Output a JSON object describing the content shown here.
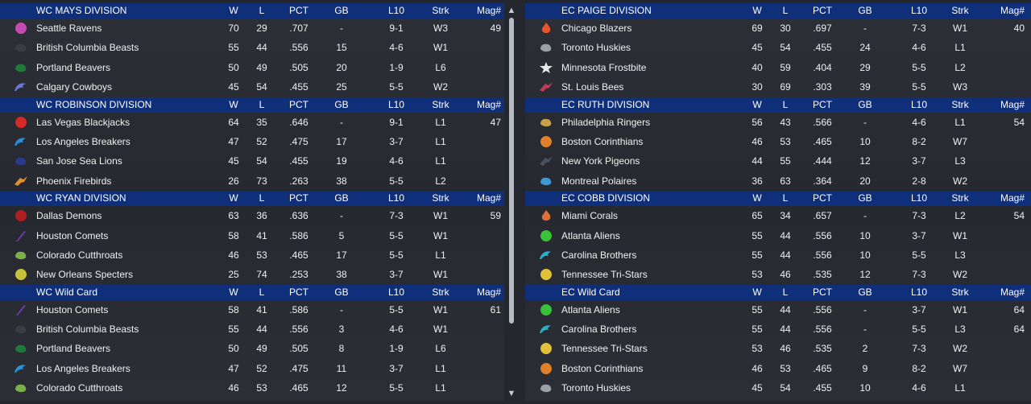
{
  "columns": {
    "w": "W",
    "l": "L",
    "pct": "PCT",
    "gb": "GB",
    "l10": "L10",
    "strk": "Strk",
    "mag": "Mag#"
  },
  "left": [
    {
      "title": "WC MAYS DIVISION",
      "teams": [
        {
          "name": "Seattle Ravens",
          "icon": "ravens-icon",
          "color": "#c64bb0",
          "w": "70",
          "l": "29",
          "pct": ".707",
          "gb": "-",
          "l10": "9-1",
          "strk": "W3",
          "mag": "49"
        },
        {
          "name": "British Columbia Beasts",
          "icon": "beasts-icon",
          "color": "#3a3d43",
          "w": "55",
          "l": "44",
          "pct": ".556",
          "gb": "15",
          "l10": "4-6",
          "strk": "W1",
          "mag": ""
        },
        {
          "name": "Portland Beavers",
          "icon": "beavers-icon",
          "color": "#1f7a3a",
          "w": "50",
          "l": "49",
          "pct": ".505",
          "gb": "20",
          "l10": "1-9",
          "strk": "L6",
          "mag": ""
        },
        {
          "name": "Calgary Cowboys",
          "icon": "cowboys-icon",
          "color": "#6f72d6",
          "w": "45",
          "l": "54",
          "pct": ".455",
          "gb": "25",
          "l10": "5-5",
          "strk": "W2",
          "mag": ""
        }
      ]
    },
    {
      "title": "WC ROBINSON DIVISION",
      "teams": [
        {
          "name": "Las Vegas Blackjacks",
          "icon": "blackjacks-icon",
          "color": "#d42a2a",
          "w": "64",
          "l": "35",
          "pct": ".646",
          "gb": "-",
          "l10": "9-1",
          "strk": "L1",
          "mag": "47"
        },
        {
          "name": "Los Angeles Breakers",
          "icon": "breakers-icon",
          "color": "#2a8fd6",
          "w": "47",
          "l": "52",
          "pct": ".475",
          "gb": "17",
          "l10": "3-7",
          "strk": "L1",
          "mag": ""
        },
        {
          "name": "San Jose Sea Lions",
          "icon": "sea-lions-icon",
          "color": "#2a3a8a",
          "w": "45",
          "l": "54",
          "pct": ".455",
          "gb": "19",
          "l10": "4-6",
          "strk": "L1",
          "mag": ""
        },
        {
          "name": "Phoenix Firebirds",
          "icon": "firebirds-icon",
          "color": "#e0902a",
          "w": "26",
          "l": "73",
          "pct": ".263",
          "gb": "38",
          "l10": "5-5",
          "strk": "L2",
          "mag": ""
        }
      ]
    },
    {
      "title": "WC RYAN DIVISION",
      "teams": [
        {
          "name": "Dallas Demons",
          "icon": "demons-icon",
          "color": "#b01f1f",
          "w": "63",
          "l": "36",
          "pct": ".636",
          "gb": "-",
          "l10": "7-3",
          "strk": "W1",
          "mag": "59"
        },
        {
          "name": "Houston Comets",
          "icon": "comets-icon",
          "color": "#6a3ab0",
          "w": "58",
          "l": "41",
          "pct": ".586",
          "gb": "5",
          "l10": "5-5",
          "strk": "W1",
          "mag": ""
        },
        {
          "name": "Colorado Cutthroats",
          "icon": "cutthroats-icon",
          "color": "#7ab04a",
          "w": "46",
          "l": "53",
          "pct": ".465",
          "gb": "17",
          "l10": "5-5",
          "strk": "L1",
          "mag": ""
        },
        {
          "name": "New Orleans Specters",
          "icon": "specters-icon",
          "color": "#c8c23a",
          "w": "25",
          "l": "74",
          "pct": ".253",
          "gb": "38",
          "l10": "3-7",
          "strk": "W1",
          "mag": ""
        }
      ]
    },
    {
      "title": "WC  Wild Card",
      "teams": [
        {
          "name": "Houston Comets",
          "icon": "comets-icon",
          "color": "#6a3ab0",
          "w": "58",
          "l": "41",
          "pct": ".586",
          "gb": "-",
          "l10": "5-5",
          "strk": "W1",
          "mag": "61"
        },
        {
          "name": "British Columbia Beasts",
          "icon": "beasts-icon",
          "color": "#3a3d43",
          "w": "55",
          "l": "44",
          "pct": ".556",
          "gb": "3",
          "l10": "4-6",
          "strk": "W1",
          "mag": ""
        },
        {
          "name": "Portland Beavers",
          "icon": "beavers-icon",
          "color": "#1f7a3a",
          "w": "50",
          "l": "49",
          "pct": ".505",
          "gb": "8",
          "l10": "1-9",
          "strk": "L6",
          "mag": ""
        },
        {
          "name": "Los Angeles Breakers",
          "icon": "breakers-icon",
          "color": "#2a8fd6",
          "w": "47",
          "l": "52",
          "pct": ".475",
          "gb": "11",
          "l10": "3-7",
          "strk": "L1",
          "mag": ""
        },
        {
          "name": "Colorado Cutthroats",
          "icon": "cutthroats-icon",
          "color": "#7ab04a",
          "w": "46",
          "l": "53",
          "pct": ".465",
          "gb": "12",
          "l10": "5-5",
          "strk": "L1",
          "mag": ""
        }
      ]
    }
  ],
  "right": [
    {
      "title": "EC PAIGE DIVISION",
      "teams": [
        {
          "name": "Chicago Blazers",
          "icon": "blazers-icon",
          "color": "#e8542a",
          "w": "69",
          "l": "30",
          "pct": ".697",
          "gb": "-",
          "l10": "7-3",
          "strk": "W1",
          "mag": "40"
        },
        {
          "name": "Toronto Huskies",
          "icon": "huskies-icon",
          "color": "#9aa0a8",
          "w": "45",
          "l": "54",
          "pct": ".455",
          "gb": "24",
          "l10": "4-6",
          "strk": "L1",
          "mag": ""
        },
        {
          "name": "Minnesota Frostbite",
          "icon": "frostbite-icon",
          "color": "#e8e8e8",
          "w": "40",
          "l": "59",
          "pct": ".404",
          "gb": "29",
          "l10": "5-5",
          "strk": "L2",
          "mag": ""
        },
        {
          "name": "St. Louis Bees",
          "icon": "bees-icon",
          "color": "#c23a5a",
          "w": "30",
          "l": "69",
          "pct": ".303",
          "gb": "39",
          "l10": "5-5",
          "strk": "W3",
          "mag": ""
        }
      ]
    },
    {
      "title": "EC RUTH DIVISION",
      "teams": [
        {
          "name": "Philadelphia Ringers",
          "icon": "ringers-icon",
          "color": "#c8a04a",
          "w": "56",
          "l": "43",
          "pct": ".566",
          "gb": "-",
          "l10": "4-6",
          "strk": "L1",
          "mag": "54"
        },
        {
          "name": "Boston Corinthians",
          "icon": "corinthians-icon",
          "color": "#e0802a",
          "w": "46",
          "l": "53",
          "pct": ".465",
          "gb": "10",
          "l10": "8-2",
          "strk": "W7",
          "mag": ""
        },
        {
          "name": "New York Pigeons",
          "icon": "pigeons-icon",
          "color": "#4a5260",
          "w": "44",
          "l": "55",
          "pct": ".444",
          "gb": "12",
          "l10": "3-7",
          "strk": "L3",
          "mag": ""
        },
        {
          "name": "Montreal Polaires",
          "icon": "polaires-icon",
          "color": "#3a9ad6",
          "w": "36",
          "l": "63",
          "pct": ".364",
          "gb": "20",
          "l10": "2-8",
          "strk": "W2",
          "mag": ""
        }
      ]
    },
    {
      "title": "EC COBB DIVISION",
      "teams": [
        {
          "name": "Miami Corals",
          "icon": "corals-icon",
          "color": "#e0703a",
          "w": "65",
          "l": "34",
          "pct": ".657",
          "gb": "-",
          "l10": "7-3",
          "strk": "L2",
          "mag": "54"
        },
        {
          "name": "Atlanta Aliens",
          "icon": "aliens-icon",
          "color": "#3ac23a",
          "w": "55",
          "l": "44",
          "pct": ".556",
          "gb": "10",
          "l10": "3-7",
          "strk": "W1",
          "mag": ""
        },
        {
          "name": "Carolina Brothers",
          "icon": "brothers-icon",
          "color": "#2ab0c8",
          "w": "55",
          "l": "44",
          "pct": ".556",
          "gb": "10",
          "l10": "5-5",
          "strk": "L3",
          "mag": ""
        },
        {
          "name": "Tennessee Tri-Stars",
          "icon": "tri-stars-icon",
          "color": "#e0c23a",
          "w": "53",
          "l": "46",
          "pct": ".535",
          "gb": "12",
          "l10": "7-3",
          "strk": "W2",
          "mag": ""
        }
      ]
    },
    {
      "title": "EC  Wild Card",
      "teams": [
        {
          "name": "Atlanta Aliens",
          "icon": "aliens-icon",
          "color": "#3ac23a",
          "w": "55",
          "l": "44",
          "pct": ".556",
          "gb": "-",
          "l10": "3-7",
          "strk": "W1",
          "mag": "64"
        },
        {
          "name": "Carolina Brothers",
          "icon": "brothers-icon",
          "color": "#2ab0c8",
          "w": "55",
          "l": "44",
          "pct": ".556",
          "gb": "-",
          "l10": "5-5",
          "strk": "L3",
          "mag": "64"
        },
        {
          "name": "Tennessee Tri-Stars",
          "icon": "tri-stars-icon",
          "color": "#e0c23a",
          "w": "53",
          "l": "46",
          "pct": ".535",
          "gb": "2",
          "l10": "7-3",
          "strk": "W2",
          "mag": ""
        },
        {
          "name": "Boston Corinthians",
          "icon": "corinthians-icon",
          "color": "#e0802a",
          "w": "46",
          "l": "53",
          "pct": ".465",
          "gb": "9",
          "l10": "8-2",
          "strk": "W7",
          "mag": ""
        },
        {
          "name": "Toronto Huskies",
          "icon": "huskies-icon",
          "color": "#9aa0a8",
          "w": "45",
          "l": "54",
          "pct": ".455",
          "gb": "10",
          "l10": "4-6",
          "strk": "L1",
          "mag": ""
        }
      ]
    }
  ]
}
